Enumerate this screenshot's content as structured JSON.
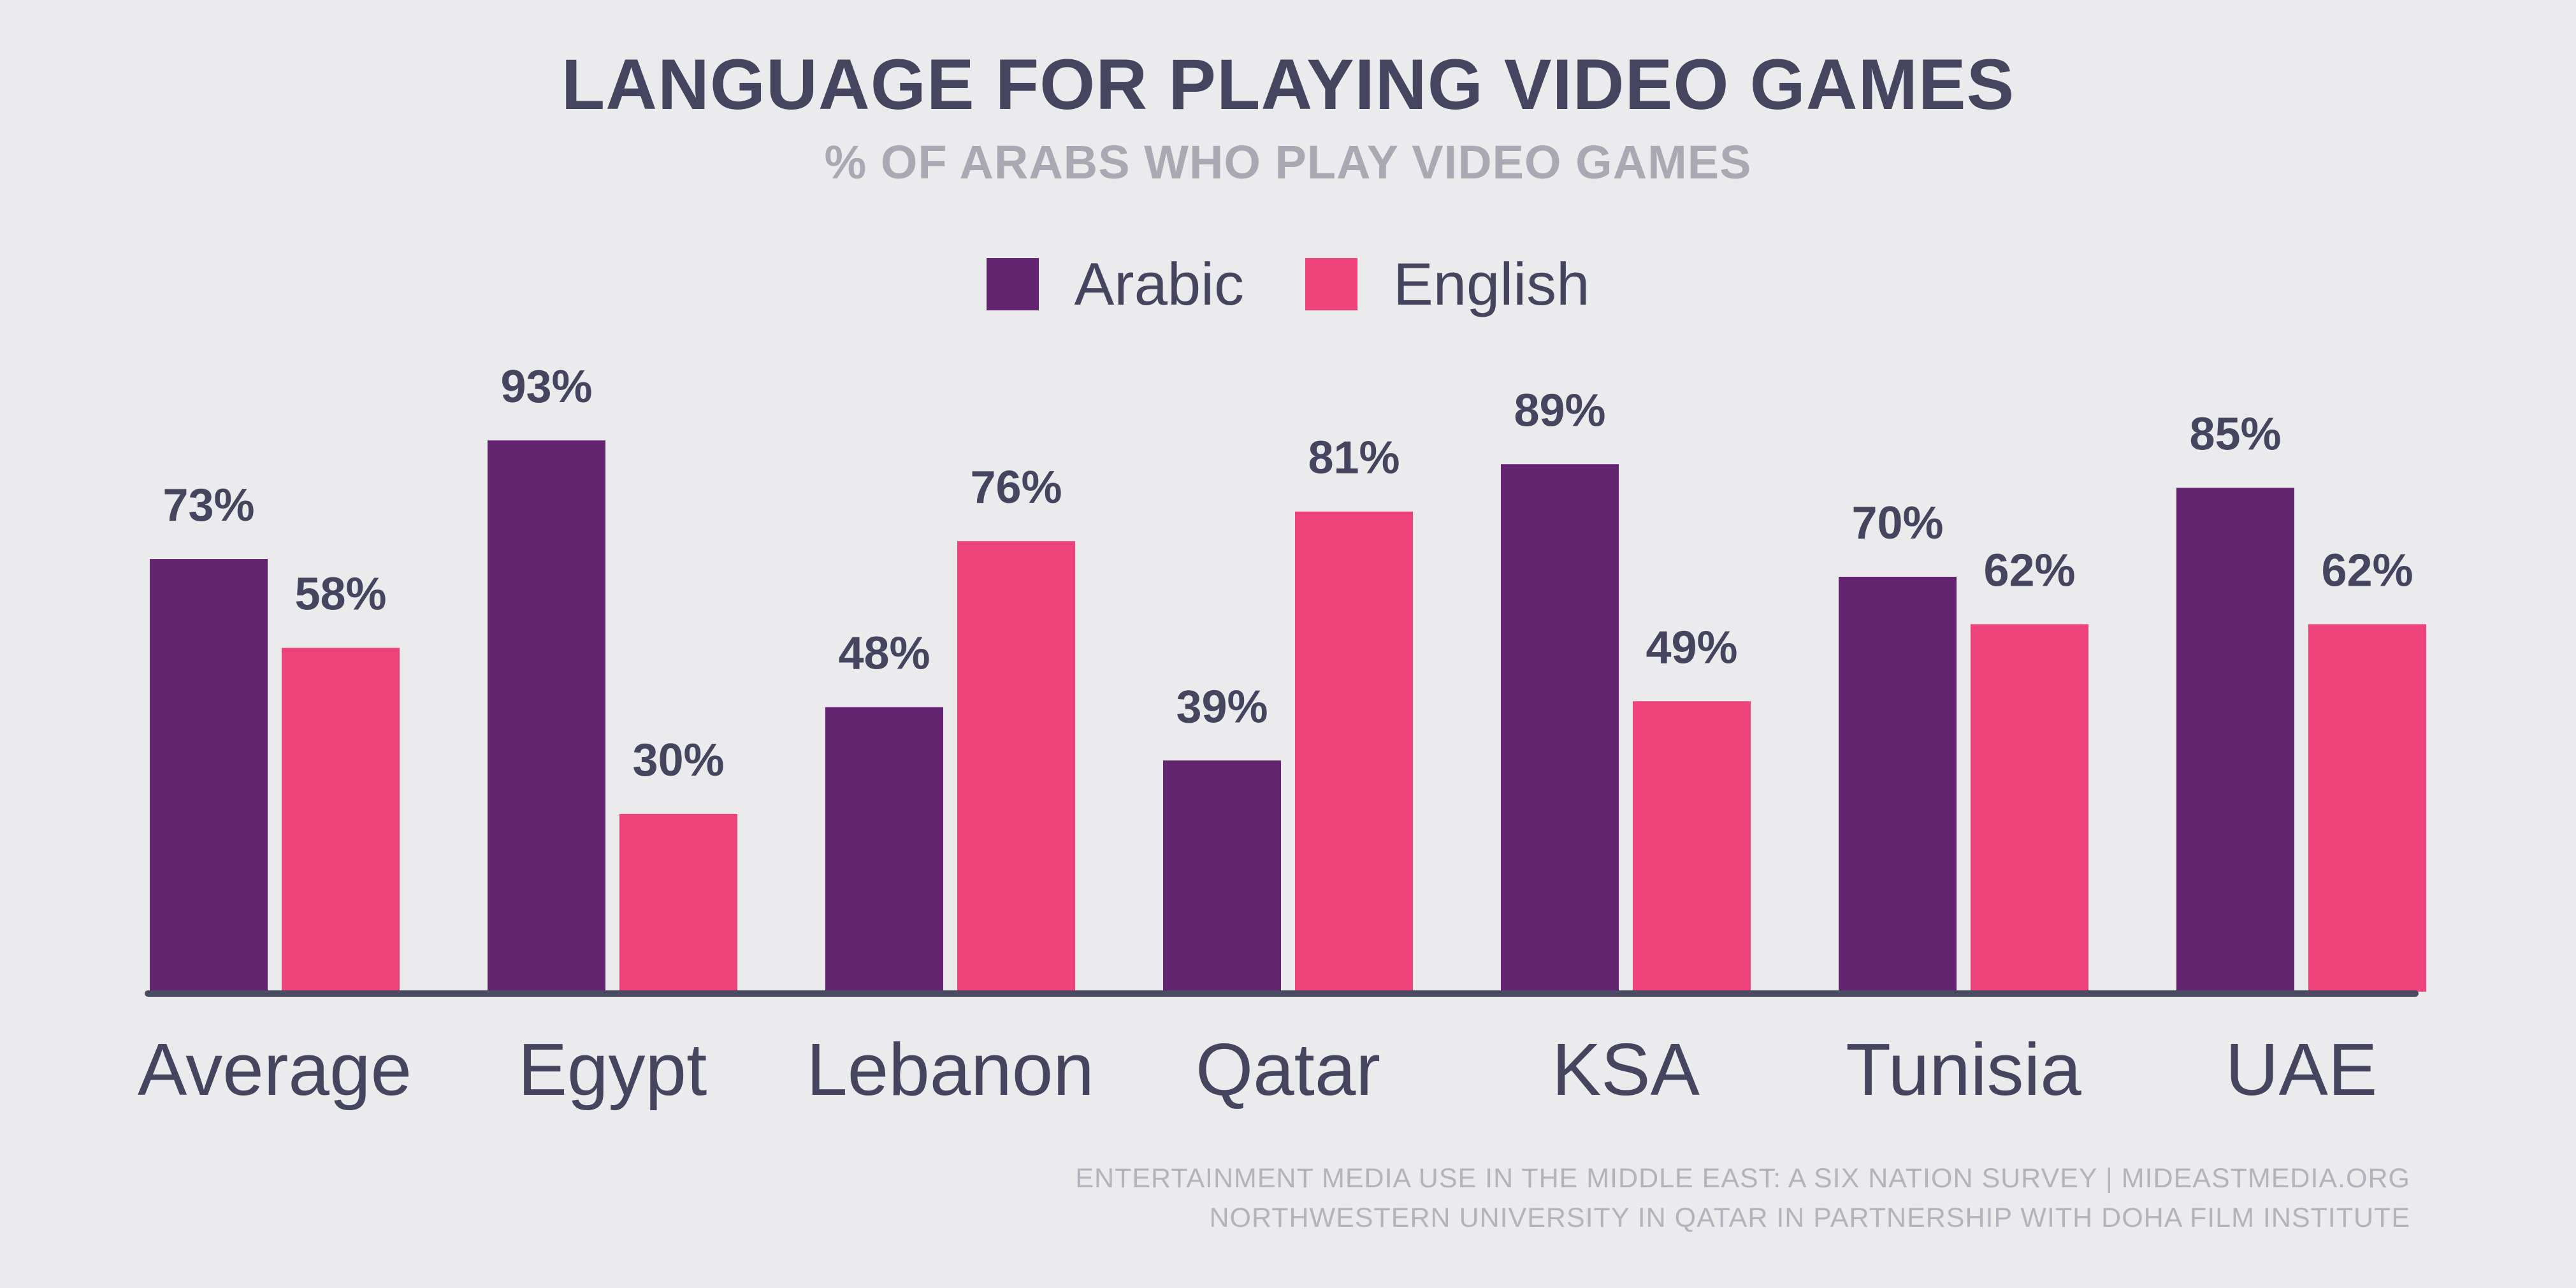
{
  "colors": {
    "arabic": "#632470",
    "english": "#ee427a",
    "axis": "#4a4a63",
    "text": "#454560"
  },
  "chart_data": {
    "type": "bar",
    "title": "LANGUAGE FOR PLAYING VIDEO GAMES",
    "subtitle": "% OF ARABS WHO PLAY VIDEO GAMES",
    "categories": [
      "Average",
      "Egypt",
      "Lebanon",
      "Qatar",
      "KSA",
      "Tunisia",
      "UAE"
    ],
    "series": [
      {
        "name": "Arabic",
        "values": [
          73,
          93,
          48,
          39,
          89,
          70,
          85
        ],
        "labels": [
          "73%",
          "93%",
          "48%",
          "39%",
          "89%",
          "70%",
          "85%"
        ]
      },
      {
        "name": "English",
        "values": [
          58,
          30,
          76,
          81,
          49,
          62,
          62
        ],
        "labels": [
          "58%",
          "30%",
          "76%",
          "81%",
          "49%",
          "62%",
          "62%"
        ]
      }
    ],
    "ylim": [
      0,
      100
    ],
    "grid": false,
    "legend": "top-center"
  },
  "footer": {
    "line1": "ENTERTAINMENT MEDIA USE IN THE MIDDLE EAST: A SIX NATION SURVEY | MIDEASTMEDIA.ORG",
    "line2": "NORTHWESTERN UNIVERSITY IN QATAR IN PARTNERSHIP WITH DOHA FILM INSTITUTE"
  }
}
